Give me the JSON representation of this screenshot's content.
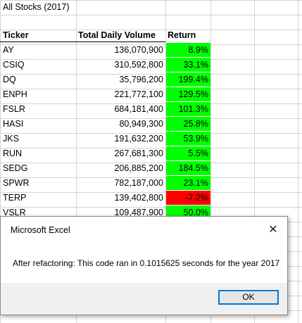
{
  "sheet": {
    "title": "All Stocks (2017)",
    "headers": {
      "ticker": "Ticker",
      "volume": "Total Daily Volume",
      "return": "Return"
    },
    "rows": [
      {
        "ticker": "AY",
        "volume": "136,070,900",
        "return": "8.9%",
        "status": "positive"
      },
      {
        "ticker": "CSIQ",
        "volume": "310,592,800",
        "return": "33.1%",
        "status": "positive"
      },
      {
        "ticker": "DQ",
        "volume": "35,796,200",
        "return": "199.4%",
        "status": "positive"
      },
      {
        "ticker": "ENPH",
        "volume": "221,772,100",
        "return": "129.5%",
        "status": "positive"
      },
      {
        "ticker": "FSLR",
        "volume": "684,181,400",
        "return": "101.3%",
        "status": "positive"
      },
      {
        "ticker": "HASI",
        "volume": "80,949,300",
        "return": "25.8%",
        "status": "positive"
      },
      {
        "ticker": "JKS",
        "volume": "191,632,200",
        "return": "53.9%",
        "status": "positive"
      },
      {
        "ticker": "RUN",
        "volume": "267,681,300",
        "return": "5.5%",
        "status": "positive"
      },
      {
        "ticker": "SEDG",
        "volume": "206,885,200",
        "return": "184.5%",
        "status": "positive"
      },
      {
        "ticker": "SPWR",
        "volume": "782,187,000",
        "return": "23.1%",
        "status": "positive"
      },
      {
        "ticker": "TERP",
        "volume": "139,402,800",
        "return": "-7.2%",
        "status": "negative"
      },
      {
        "ticker": "VSLR",
        "volume": "109,487,900",
        "return": "50.0%",
        "status": "positive"
      }
    ]
  },
  "colors": {
    "positive": "#00ff00",
    "negative": "#ff0000",
    "gridline": "#d4d4d4"
  },
  "dialog": {
    "title": "Microsoft Excel",
    "message": "After refactoring: This code ran in 0.1015625 seconds for the year 2017",
    "ok_label": "OK",
    "close_icon": "close-icon"
  }
}
